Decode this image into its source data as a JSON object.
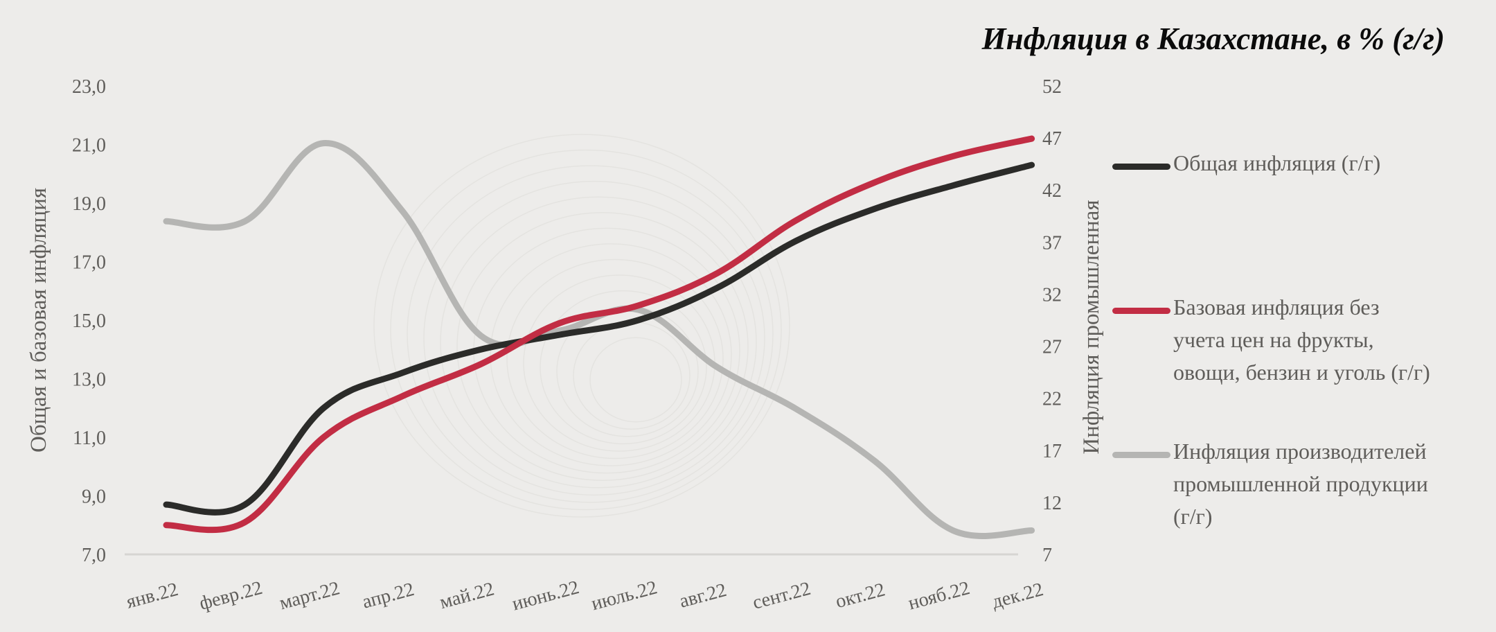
{
  "title": "Инфляция в Казахстане, в % (г/г)",
  "colors": {
    "background": "#edecea",
    "total": "#2b2b29",
    "core": "#c22d44",
    "producer": "#b5b5b3",
    "axis_text": "#5f5d5a",
    "axis_line": "#d6d5d2"
  },
  "chart_data": {
    "type": "line",
    "x": [
      "янв.22",
      "февр.22",
      "март.22",
      "апр.22",
      "май.22",
      "июнь.22",
      "июль.22",
      "авг.22",
      "сент.22",
      "окт.22",
      "нояб.22",
      "дек.22"
    ],
    "series": [
      {
        "name": "Общая инфляция (г/г)",
        "axis": "left",
        "color": "#2b2b29",
        "values": [
          8.7,
          8.7,
          12.0,
          13.2,
          14.0,
          14.5,
          15.0,
          16.1,
          17.7,
          18.8,
          19.6,
          20.3
        ]
      },
      {
        "name": "Базовая инфляция без учета цен на фрукты, овощи, бензин и уголь (г/г)",
        "axis": "left",
        "color": "#c22d44",
        "values": [
          8.0,
          8.1,
          11.0,
          12.4,
          13.5,
          14.9,
          15.5,
          16.6,
          18.4,
          19.7,
          20.6,
          21.2
        ]
      },
      {
        "name": "Инфляция производителей промышленной продукции (г/г)",
        "axis": "right",
        "color": "#b5b5b3",
        "values": [
          39.0,
          39.0,
          46.5,
          40.0,
          28.0,
          28.5,
          30.5,
          25.0,
          21.0,
          16.0,
          9.3,
          9.3
        ]
      }
    ],
    "y_left": {
      "label": "Общая и базовая инфляция",
      "ticks": [
        "7,0",
        "9,0",
        "11,0",
        "13,0",
        "15,0",
        "17,0",
        "19,0",
        "21,0",
        "23,0"
      ],
      "ylim": [
        7,
        23
      ]
    },
    "y_right": {
      "label": "Инфляция промышленная",
      "ticks": [
        "7",
        "12",
        "17",
        "22",
        "27",
        "32",
        "37",
        "42",
        "47",
        "52"
      ],
      "ylim": [
        7,
        52
      ]
    },
    "legend": {
      "position": "right",
      "items": [
        {
          "lines": [
            "Общая инфляция (г/г)"
          ],
          "color": "#2b2b29"
        },
        {
          "lines": [
            "Базовая инфляция без",
            "учета цен на фрукты,",
            "овощи, бензин и уголь (г/г)"
          ],
          "color": "#c22d44"
        },
        {
          "lines": [
            "Инфляция производителей",
            "промышленной продукции",
            "(г/г)"
          ],
          "color": "#b5b5b3"
        }
      ]
    },
    "grid": false
  }
}
